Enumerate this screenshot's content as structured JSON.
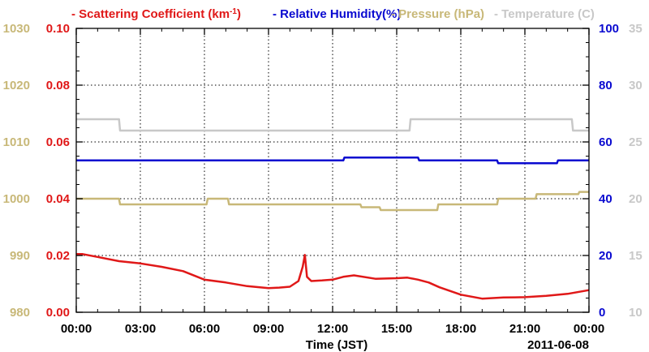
{
  "chart_data": {
    "type": "line",
    "xlabel": "Time (JST)",
    "date_label": "2011-06-08",
    "x_ticks": [
      "00:00",
      "03:00",
      "06:00",
      "09:00",
      "12:00",
      "15:00",
      "18:00",
      "21:00",
      "00:00"
    ],
    "xlim_hours": [
      0,
      24
    ],
    "grid": true,
    "legend_position": "top",
    "axes": {
      "pressure": {
        "ticks": [
          "980",
          "990",
          "1000",
          "1010",
          "1020",
          "1030"
        ],
        "ylim": [
          980,
          1030
        ],
        "color": "#c8b878",
        "side": "left-outer"
      },
      "scattering": {
        "ticks": [
          "0.00",
          "0.02",
          "0.04",
          "0.06",
          "0.08",
          "0.10"
        ],
        "ylim": [
          0,
          0.1
        ],
        "color": "#e01818",
        "side": "left-inner"
      },
      "humidity": {
        "ticks": [
          "0",
          "20",
          "40",
          "60",
          "80",
          "100"
        ],
        "ylim": [
          0,
          100
        ],
        "color": "#0a0ad0",
        "side": "right-inner"
      },
      "temperature": {
        "ticks": [
          "10",
          "15",
          "20",
          "25",
          "30",
          "35"
        ],
        "ylim": [
          10,
          35
        ],
        "color": "#c8c8c8",
        "side": "right-outer"
      }
    },
    "series": [
      {
        "name": "Scattering Coefficient (km",
        "name_sup": "-1",
        "name_tail": ")",
        "axis": "scattering",
        "color": "#e01818",
        "x": [
          0,
          0.3,
          1,
          2,
          3,
          4,
          5,
          6,
          7,
          8,
          9,
          9.5,
          10,
          10.4,
          10.6,
          10.7,
          10.8,
          11,
          11.5,
          12,
          12.5,
          13,
          14,
          15,
          15.5,
          16,
          16.5,
          17,
          18,
          19,
          20,
          21,
          22,
          23,
          24
        ],
        "y": [
          0.0205,
          0.0205,
          0.0195,
          0.018,
          0.0172,
          0.016,
          0.0145,
          0.0115,
          0.0105,
          0.0092,
          0.0085,
          0.0087,
          0.009,
          0.011,
          0.016,
          0.0202,
          0.0125,
          0.011,
          0.0112,
          0.0115,
          0.0125,
          0.013,
          0.0118,
          0.012,
          0.0122,
          0.0115,
          0.0105,
          0.0088,
          0.0062,
          0.0048,
          0.0052,
          0.0053,
          0.0058,
          0.0065,
          0.0078
        ]
      },
      {
        "name": "Relative Humidity(%)",
        "axis": "humidity",
        "color": "#0a0ad0",
        "x": [
          0,
          12.5,
          12.55,
          16,
          16.05,
          19.7,
          19.75,
          22.5,
          22.55,
          24
        ],
        "y": [
          53.5,
          53.5,
          54.5,
          54.5,
          53.5,
          53.5,
          52.5,
          52.5,
          53.5,
          53.5
        ]
      },
      {
        "name": "Pressure (hPa)",
        "axis": "pressure",
        "color": "#c8b878",
        "x": [
          0,
          2,
          2.05,
          6.1,
          6.15,
          7.1,
          7.15,
          13.3,
          13.35,
          14.2,
          14.25,
          16.9,
          16.95,
          19.7,
          19.75,
          21.5,
          21.55,
          23.5,
          23.55,
          24
        ],
        "y": [
          1000,
          1000,
          999,
          999,
          1000,
          1000,
          999,
          999,
          998.5,
          998.5,
          998,
          998,
          999,
          999,
          1000,
          1000,
          1000.8,
          1000.8,
          1001.2,
          1001.2
        ]
      },
      {
        "name": "Temperature (C)",
        "axis": "temperature",
        "color": "#c8c8c8",
        "x": [
          0,
          2,
          2.05,
          15.6,
          15.65,
          23.2,
          23.25,
          24
        ],
        "y": [
          27,
          27,
          26,
          26,
          27,
          27,
          26,
          26
        ]
      }
    ]
  }
}
